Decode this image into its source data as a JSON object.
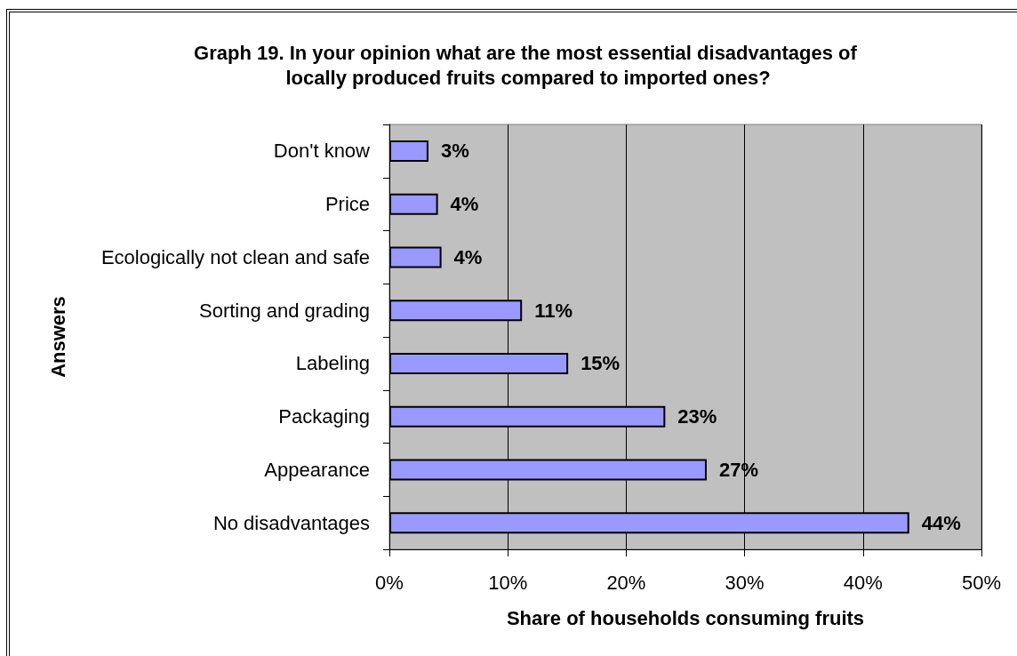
{
  "chart_data": {
    "type": "bar",
    "orientation": "horizontal",
    "title": "Graph 19. In your opinion what are the most essential disadvantages of locally produced fruits compared to imported ones?",
    "xlabel": "Share of households consuming fruits",
    "ylabel": "Answers",
    "categories": [
      "Don't know",
      "Price",
      "Ecologically not clean and safe",
      "Sorting and grading",
      "Labeling",
      "Packaging",
      "Appearance",
      "No disadvantages"
    ],
    "values": [
      3.3,
      4.1,
      4.4,
      11.2,
      15.1,
      23.3,
      26.8,
      43.9
    ],
    "value_labels": [
      "3%",
      "4%",
      "4%",
      "11%",
      "15%",
      "23%",
      "27%",
      "44%"
    ],
    "color": "#9999ff",
    "xlim": [
      0,
      50
    ],
    "xticks": [
      {
        "value": 0,
        "label": "0%"
      },
      {
        "value": 10,
        "label": "10%"
      },
      {
        "value": 20,
        "label": "20%"
      },
      {
        "value": 30,
        "label": "30%"
      },
      {
        "value": 40,
        "label": "40%"
      },
      {
        "value": 50,
        "label": "50%"
      }
    ],
    "grid": "x"
  }
}
